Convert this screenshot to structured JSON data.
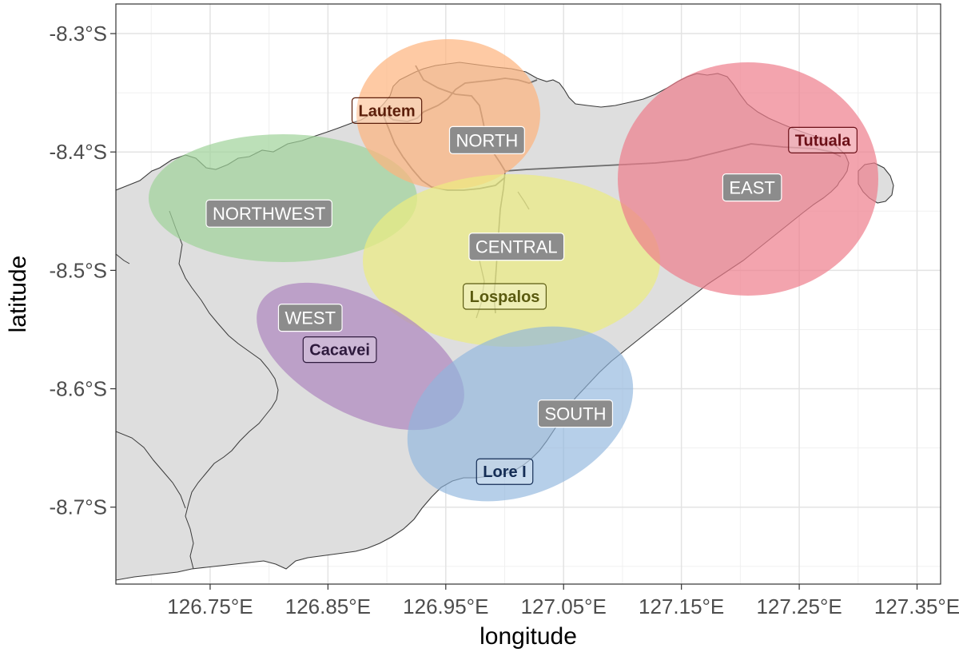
{
  "axes": {
    "xlabel": "longitude",
    "ylabel": "latitude",
    "x_ticks": [
      "126.75°E",
      "126.85°E",
      "126.95°E",
      "127.05°E",
      "127.15°E",
      "127.25°E",
      "127.35°E"
    ],
    "y_ticks": [
      "-8.3°S",
      "-8.4°S",
      "-8.5°S",
      "-8.6°S",
      "-8.7°S"
    ]
  },
  "chart_data": {
    "type": "scatter",
    "xlabel": "longitude",
    "ylabel": "latitude",
    "xlim": [
      126.67,
      127.37
    ],
    "ylim": [
      -8.765,
      -8.275
    ],
    "x_ticks": [
      126.75,
      126.85,
      126.95,
      127.05,
      127.15,
      127.25,
      127.35
    ],
    "y_ticks": [
      -8.3,
      -8.4,
      -8.5,
      -8.6,
      -8.7
    ],
    "grid": true,
    "regions": [
      {
        "label": "NORTH",
        "color": "#FDB47D",
        "label_lon": 126.985,
        "label_lat": -8.39
      },
      {
        "label": "NORTHWEST",
        "color": "#9FD39A",
        "label_lon": 126.8,
        "label_lat": -8.452
      },
      {
        "label": "CENTRAL",
        "color": "#EDED80",
        "label_lon": 127.01,
        "label_lat": -8.48
      },
      {
        "label": "EAST",
        "color": "#EE7E8B",
        "label_lon": 127.21,
        "label_lat": -8.43
      },
      {
        "label": "WEST",
        "color": "#B08BC0",
        "label_lon": 126.835,
        "label_lat": -8.54
      },
      {
        "label": "SOUTH",
        "color": "#8FB5DD",
        "label_lon": 127.06,
        "label_lat": -8.621
      }
    ],
    "sites": [
      {
        "name": "Lautem",
        "color": "#5C1E0A",
        "lon": 126.9,
        "lat": -8.365
      },
      {
        "name": "Tutuala",
        "color": "#6B0F17",
        "lon": 127.27,
        "lat": -8.39
      },
      {
        "name": "Lospalos",
        "color": "#5A5A10",
        "lon": 127.0,
        "lat": -8.522
      },
      {
        "name": "Cacavei",
        "color": "#2E1A3D",
        "lon": 126.86,
        "lat": -8.567
      },
      {
        "name": "Lore I",
        "color": "#142D55",
        "lon": 127.0,
        "lat": -8.67
      }
    ]
  }
}
